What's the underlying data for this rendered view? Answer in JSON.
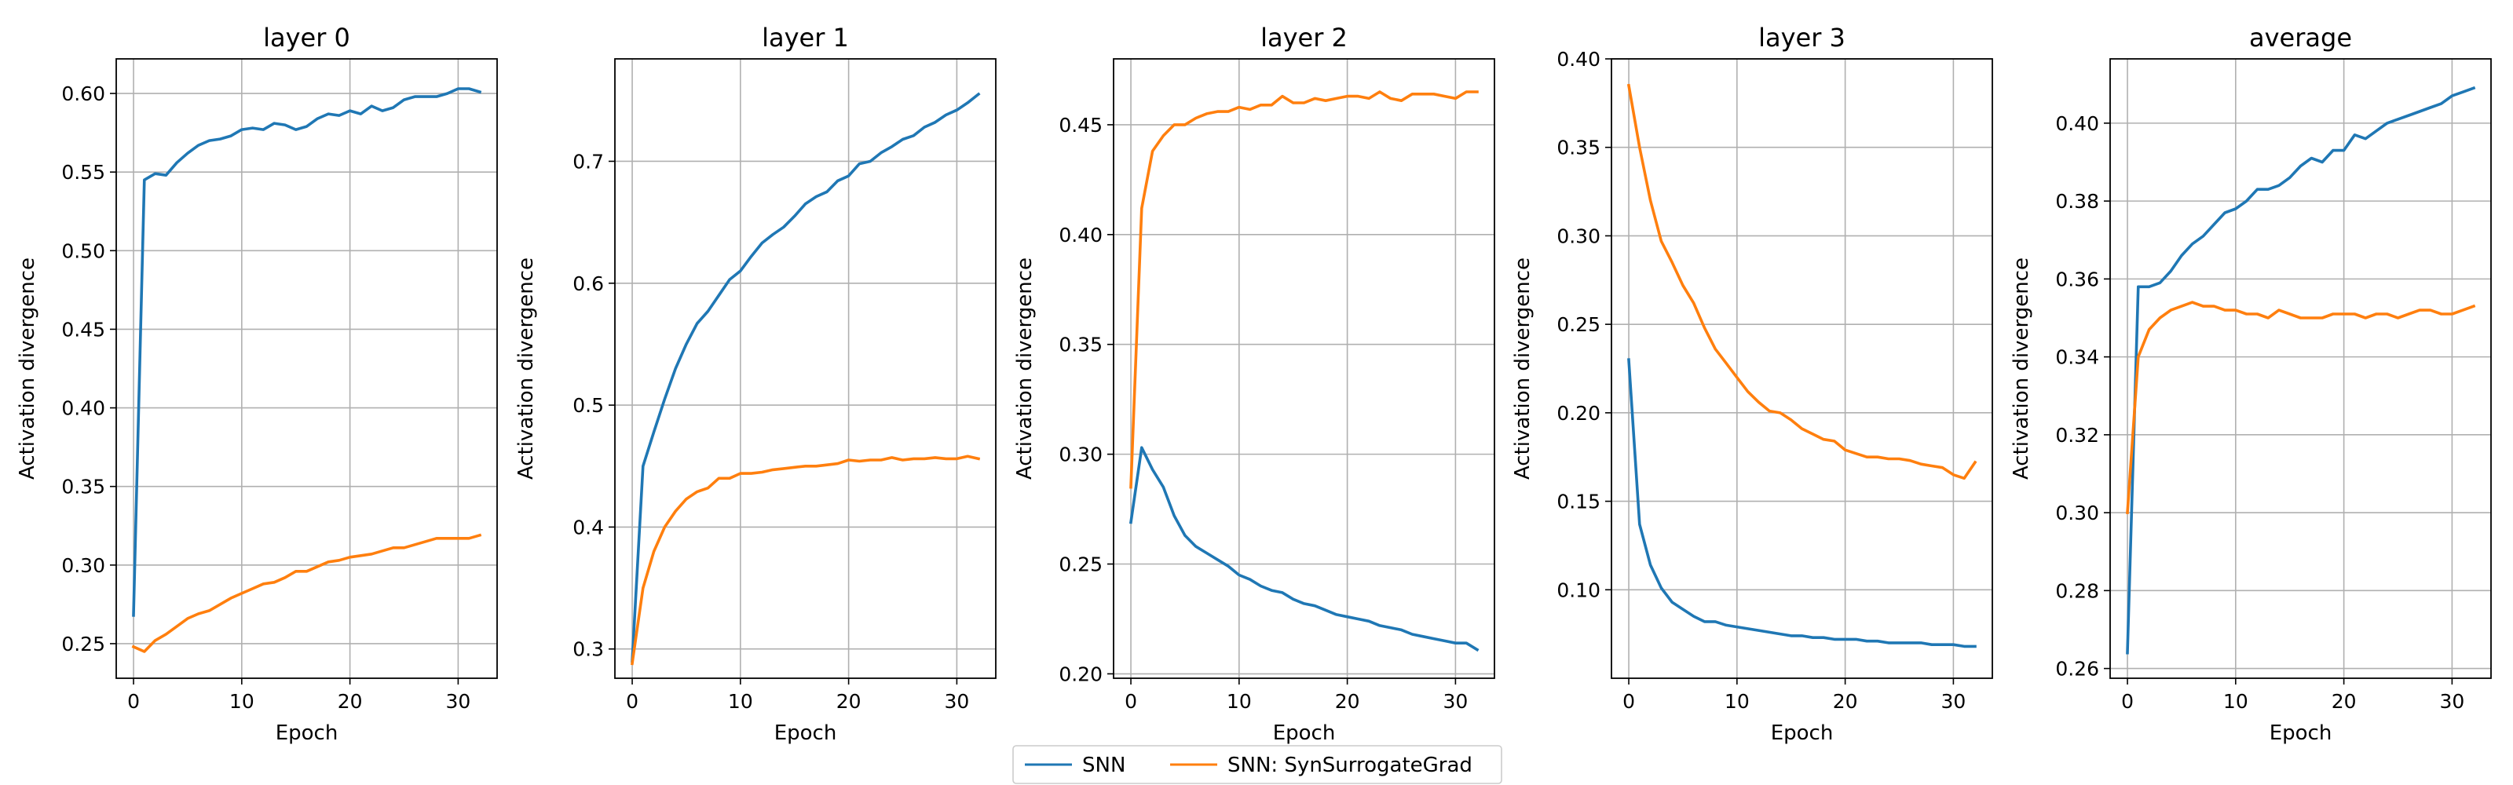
{
  "chart_data": [
    {
      "type": "line",
      "title": "layer 0",
      "xlabel": "Epoch",
      "ylabel": "Activation divergence",
      "xlim": [
        -1.6,
        33.6
      ],
      "ylim": [
        0.228,
        0.622
      ],
      "xticks": [
        0,
        10,
        20,
        30
      ],
      "yticks": [
        0.25,
        0.3,
        0.35,
        0.4,
        0.45,
        0.5,
        0.55,
        0.6
      ],
      "grid": true,
      "series": [
        {
          "name": "SNN",
          "color": "#1f77b4",
          "x": [
            0,
            1,
            2,
            3,
            4,
            5,
            6,
            7,
            8,
            9,
            10,
            11,
            12,
            13,
            14,
            15,
            16,
            17,
            18,
            19,
            20,
            21,
            22,
            23,
            24,
            25,
            26,
            27,
            28,
            29,
            30,
            31,
            32
          ],
          "y": [
            0.268,
            0.545,
            0.549,
            0.548,
            0.556,
            0.562,
            0.567,
            0.57,
            0.571,
            0.573,
            0.577,
            0.578,
            0.577,
            0.581,
            0.58,
            0.577,
            0.579,
            0.584,
            0.587,
            0.586,
            0.589,
            0.587,
            0.592,
            0.589,
            0.591,
            0.596,
            0.598,
            0.598,
            0.598,
            0.6,
            0.603,
            0.603,
            0.601
          ]
        },
        {
          "name": "SNN: SynSurrogateGrad",
          "color": "#ff7f0e",
          "x": [
            0,
            1,
            2,
            3,
            4,
            5,
            6,
            7,
            8,
            9,
            10,
            11,
            12,
            13,
            14,
            15,
            16,
            17,
            18,
            19,
            20,
            21,
            22,
            23,
            24,
            25,
            26,
            27,
            28,
            29,
            30,
            31,
            32
          ],
          "y": [
            0.248,
            0.245,
            0.252,
            0.256,
            0.261,
            0.266,
            0.269,
            0.271,
            0.275,
            0.279,
            0.282,
            0.285,
            0.288,
            0.289,
            0.292,
            0.296,
            0.296,
            0.299,
            0.302,
            0.303,
            0.305,
            0.306,
            0.307,
            0.309,
            0.311,
            0.311,
            0.313,
            0.315,
            0.317,
            0.317,
            0.317,
            0.317,
            0.319
          ]
        }
      ]
    },
    {
      "type": "line",
      "title": "layer 1",
      "xlabel": "Epoch",
      "ylabel": "Activation divergence",
      "xlim": [
        -1.6,
        33.6
      ],
      "ylim": [
        0.276,
        0.784
      ],
      "xticks": [
        0,
        10,
        20,
        30
      ],
      "yticks": [
        0.3,
        0.4,
        0.5,
        0.6,
        0.7
      ],
      "grid": true,
      "series": [
        {
          "name": "SNN",
          "color": "#1f77b4",
          "x": [
            0,
            1,
            2,
            3,
            4,
            5,
            6,
            7,
            8,
            9,
            10,
            11,
            12,
            13,
            14,
            15,
            16,
            17,
            18,
            19,
            20,
            21,
            22,
            23,
            24,
            25,
            26,
            27,
            28,
            29,
            30,
            31,
            32
          ],
          "y": [
            0.29,
            0.45,
            0.478,
            0.505,
            0.53,
            0.55,
            0.567,
            0.577,
            0.59,
            0.603,
            0.61,
            0.622,
            0.633,
            0.64,
            0.646,
            0.655,
            0.665,
            0.671,
            0.675,
            0.684,
            0.688,
            0.698,
            0.7,
            0.707,
            0.712,
            0.718,
            0.721,
            0.728,
            0.732,
            0.738,
            0.742,
            0.748,
            0.755
          ]
        },
        {
          "name": "SNN: SynSurrogateGrad",
          "color": "#ff7f0e",
          "x": [
            0,
            1,
            2,
            3,
            4,
            5,
            6,
            7,
            8,
            9,
            10,
            11,
            12,
            13,
            14,
            15,
            16,
            17,
            18,
            19,
            20,
            21,
            22,
            23,
            24,
            25,
            26,
            27,
            28,
            29,
            30,
            31,
            32
          ],
          "y": [
            0.288,
            0.35,
            0.38,
            0.4,
            0.413,
            0.423,
            0.429,
            0.432,
            0.44,
            0.44,
            0.444,
            0.444,
            0.445,
            0.447,
            0.448,
            0.449,
            0.45,
            0.45,
            0.451,
            0.452,
            0.455,
            0.454,
            0.455,
            0.455,
            0.457,
            0.455,
            0.456,
            0.456,
            0.457,
            0.456,
            0.456,
            0.458,
            0.456
          ]
        }
      ]
    },
    {
      "type": "line",
      "title": "layer 2",
      "xlabel": "Epoch",
      "ylabel": "Activation divergence",
      "xlim": [
        -1.6,
        33.6
      ],
      "ylim": [
        0.198,
        0.48
      ],
      "xticks": [
        0,
        10,
        20,
        30
      ],
      "yticks": [
        0.2,
        0.25,
        0.3,
        0.35,
        0.4,
        0.45
      ],
      "grid": true,
      "series": [
        {
          "name": "SNN",
          "color": "#1f77b4",
          "x": [
            0,
            1,
            2,
            3,
            4,
            5,
            6,
            7,
            8,
            9,
            10,
            11,
            12,
            13,
            14,
            15,
            16,
            17,
            18,
            19,
            20,
            21,
            22,
            23,
            24,
            25,
            26,
            27,
            28,
            29,
            30,
            31,
            32
          ],
          "y": [
            0.269,
            0.303,
            0.293,
            0.285,
            0.272,
            0.263,
            0.258,
            0.255,
            0.252,
            0.249,
            0.245,
            0.243,
            0.24,
            0.238,
            0.237,
            0.234,
            0.232,
            0.231,
            0.229,
            0.227,
            0.226,
            0.225,
            0.224,
            0.222,
            0.221,
            0.22,
            0.218,
            0.217,
            0.216,
            0.215,
            0.214,
            0.214,
            0.211
          ]
        },
        {
          "name": "SNN: SynSurrogateGrad",
          "color": "#ff7f0e",
          "x": [
            0,
            1,
            2,
            3,
            4,
            5,
            6,
            7,
            8,
            9,
            10,
            11,
            12,
            13,
            14,
            15,
            16,
            17,
            18,
            19,
            20,
            21,
            22,
            23,
            24,
            25,
            26,
            27,
            28,
            29,
            30,
            31,
            32
          ],
          "y": [
            0.285,
            0.412,
            0.438,
            0.445,
            0.45,
            0.45,
            0.453,
            0.455,
            0.456,
            0.456,
            0.458,
            0.457,
            0.459,
            0.459,
            0.463,
            0.46,
            0.46,
            0.462,
            0.461,
            0.462,
            0.463,
            0.463,
            0.462,
            0.465,
            0.462,
            0.461,
            0.464,
            0.464,
            0.464,
            0.463,
            0.462,
            0.465,
            0.465
          ]
        }
      ]
    },
    {
      "type": "line",
      "title": "layer 3",
      "xlabel": "Epoch",
      "ylabel": "Activation divergence",
      "xlim": [
        -1.6,
        33.6
      ],
      "ylim": [
        0.05,
        0.4
      ],
      "xticks": [
        0,
        10,
        20,
        30
      ],
      "yticks": [
        0.1,
        0.15,
        0.2,
        0.25,
        0.3,
        0.35,
        0.4
      ],
      "grid": true,
      "series": [
        {
          "name": "SNN",
          "color": "#1f77b4",
          "x": [
            0,
            1,
            2,
            3,
            4,
            5,
            6,
            7,
            8,
            9,
            10,
            11,
            12,
            13,
            14,
            15,
            16,
            17,
            18,
            19,
            20,
            21,
            22,
            23,
            24,
            25,
            26,
            27,
            28,
            29,
            30,
            31,
            32
          ],
          "y": [
            0.23,
            0.137,
            0.114,
            0.101,
            0.093,
            0.089,
            0.085,
            0.082,
            0.082,
            0.08,
            0.079,
            0.078,
            0.077,
            0.076,
            0.075,
            0.074,
            0.074,
            0.073,
            0.073,
            0.072,
            0.072,
            0.072,
            0.071,
            0.071,
            0.07,
            0.07,
            0.07,
            0.07,
            0.069,
            0.069,
            0.069,
            0.068,
            0.068
          ]
        },
        {
          "name": "SNN: SynSurrogateGrad",
          "color": "#ff7f0e",
          "x": [
            0,
            1,
            2,
            3,
            4,
            5,
            6,
            7,
            8,
            9,
            10,
            11,
            12,
            13,
            14,
            15,
            16,
            17,
            18,
            19,
            20,
            21,
            22,
            23,
            24,
            25,
            26,
            27,
            28,
            29,
            30,
            31,
            32
          ],
          "y": [
            0.385,
            0.35,
            0.32,
            0.297,
            0.285,
            0.272,
            0.262,
            0.248,
            0.236,
            0.228,
            0.22,
            0.212,
            0.206,
            0.201,
            0.2,
            0.196,
            0.191,
            0.188,
            0.185,
            0.184,
            0.179,
            0.177,
            0.175,
            0.175,
            0.174,
            0.174,
            0.173,
            0.171,
            0.17,
            0.169,
            0.165,
            0.163,
            0.172
          ]
        }
      ]
    },
    {
      "type": "line",
      "title": "average",
      "xlabel": "Epoch",
      "ylabel": "Activation divergence",
      "xlim": [
        -1.6,
        33.6
      ],
      "ylim": [
        0.2575,
        0.4165
      ],
      "xticks": [
        0,
        10,
        20,
        30
      ],
      "yticks": [
        0.26,
        0.28,
        0.3,
        0.32,
        0.34,
        0.36,
        0.38,
        0.4
      ],
      "grid": true,
      "series": [
        {
          "name": "SNN",
          "color": "#1f77b4",
          "x": [
            0,
            1,
            2,
            3,
            4,
            5,
            6,
            7,
            8,
            9,
            10,
            11,
            12,
            13,
            14,
            15,
            16,
            17,
            18,
            19,
            20,
            21,
            22,
            23,
            24,
            25,
            26,
            27,
            28,
            29,
            30,
            31,
            32
          ],
          "y": [
            0.264,
            0.358,
            0.358,
            0.359,
            0.362,
            0.366,
            0.369,
            0.371,
            0.374,
            0.377,
            0.378,
            0.38,
            0.383,
            0.383,
            0.384,
            0.386,
            0.389,
            0.391,
            0.39,
            0.393,
            0.393,
            0.397,
            0.396,
            0.398,
            0.4,
            0.401,
            0.402,
            0.403,
            0.404,
            0.405,
            0.407,
            0.408,
            0.409
          ]
        },
        {
          "name": "SNN: SynSurrogateGrad",
          "color": "#ff7f0e",
          "x": [
            0,
            1,
            2,
            3,
            4,
            5,
            6,
            7,
            8,
            9,
            10,
            11,
            12,
            13,
            14,
            15,
            16,
            17,
            18,
            19,
            20,
            21,
            22,
            23,
            24,
            25,
            26,
            27,
            28,
            29,
            30,
            31,
            32
          ],
          "y": [
            0.3,
            0.34,
            0.347,
            0.35,
            0.352,
            0.353,
            0.354,
            0.353,
            0.353,
            0.352,
            0.352,
            0.351,
            0.351,
            0.35,
            0.352,
            0.351,
            0.35,
            0.35,
            0.35,
            0.351,
            0.351,
            0.351,
            0.35,
            0.351,
            0.351,
            0.35,
            0.351,
            0.352,
            0.352,
            0.351,
            0.351,
            0.352,
            0.353
          ]
        }
      ]
    }
  ],
  "legend": {
    "placement": "bottom-center",
    "entries": [
      {
        "label": "SNN",
        "color": "#1f77b4"
      },
      {
        "label": "SNN: SynSurrogateGrad",
        "color": "#ff7f0e"
      }
    ]
  }
}
